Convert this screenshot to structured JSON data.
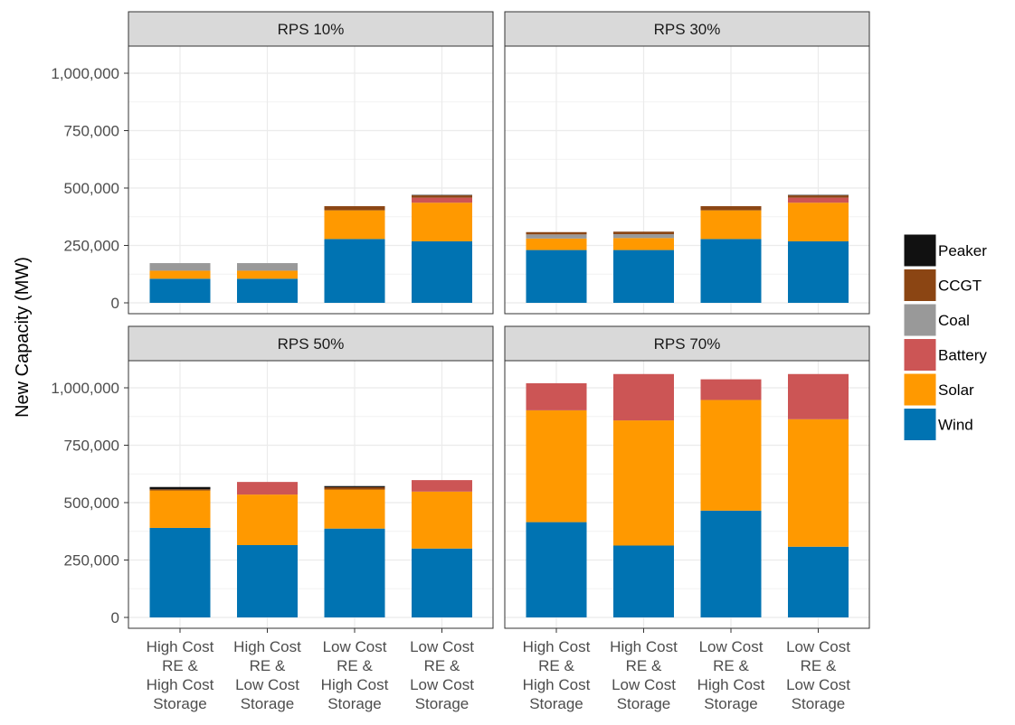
{
  "chart_data": {
    "type": "bar",
    "stacked": true,
    "ylabel": "New Capacity (MW)",
    "xlabel": "",
    "ylim": [
      0,
      1100000
    ],
    "yticks": [
      0,
      250000,
      500000,
      750000,
      1000000
    ],
    "ytick_labels": [
      "0",
      "250,000",
      "500,000",
      "750,000",
      "1,000,000"
    ],
    "grid": true,
    "legend_position": "right",
    "categories": [
      [
        "High Cost",
        "RE &",
        "High Cost",
        "Storage"
      ],
      [
        "High Cost",
        "RE &",
        "Low Cost",
        "Storage"
      ],
      [
        "Low Cost",
        "RE &",
        "High Cost",
        "Storage"
      ],
      [
        "Low Cost",
        "RE &",
        "Low Cost",
        "Storage"
      ]
    ],
    "legend": [
      {
        "name": "Peaker",
        "color": "#111111"
      },
      {
        "name": "CCGT",
        "color": "#8B4513"
      },
      {
        "name": "Coal",
        "color": "#999999"
      },
      {
        "name": "Battery",
        "color": "#CC5555"
      },
      {
        "name": "Solar",
        "color": "#FF9900"
      },
      {
        "name": "Wind",
        "color": "#0073B2"
      }
    ],
    "stack_order": [
      "Wind",
      "Solar",
      "Battery",
      "Coal",
      "CCGT",
      "Peaker"
    ],
    "panels": [
      {
        "title": "RPS 10%",
        "series": [
          {
            "name": "Wind",
            "values": [
              105000,
              105000,
              278000,
              268000
            ]
          },
          {
            "name": "Solar",
            "values": [
              35000,
              35000,
              125000,
              168000
            ]
          },
          {
            "name": "Battery",
            "values": [
              0,
              0,
              0,
              22000
            ]
          },
          {
            "name": "Coal",
            "values": [
              33000,
              33000,
              0,
              0
            ]
          },
          {
            "name": "CCGT",
            "values": [
              0,
              0,
              18000,
              10000
            ]
          },
          {
            "name": "Peaker",
            "values": [
              0,
              0,
              0,
              2000
            ]
          }
        ]
      },
      {
        "title": "RPS 30%",
        "series": [
          {
            "name": "Wind",
            "values": [
              230000,
              230000,
              278000,
              268000
            ]
          },
          {
            "name": "Solar",
            "values": [
              50000,
              52000,
              125000,
              168000
            ]
          },
          {
            "name": "Battery",
            "values": [
              0,
              0,
              0,
              22000
            ]
          },
          {
            "name": "Coal",
            "values": [
              18000,
              17000,
              0,
              0
            ]
          },
          {
            "name": "CCGT",
            "values": [
              10000,
              11000,
              18000,
              10000
            ]
          },
          {
            "name": "Peaker",
            "values": [
              0,
              0,
              0,
              2000
            ]
          }
        ]
      },
      {
        "title": "RPS 50%",
        "series": [
          {
            "name": "Wind",
            "values": [
              390000,
              315000,
              387000,
              300000
            ]
          },
          {
            "name": "Solar",
            "values": [
              163000,
              220000,
              170000,
              248000
            ]
          },
          {
            "name": "Battery",
            "values": [
              0,
              55000,
              0,
              50000
            ]
          },
          {
            "name": "Coal",
            "values": [
              0,
              0,
              0,
              0
            ]
          },
          {
            "name": "CCGT",
            "values": [
              5000,
              0,
              10000,
              0
            ]
          },
          {
            "name": "Peaker",
            "values": [
              10000,
              0,
              5000,
              0
            ]
          }
        ]
      },
      {
        "title": "RPS 70%",
        "series": [
          {
            "name": "Wind",
            "values": [
              415000,
              313000,
              465000,
              308000
            ]
          },
          {
            "name": "Solar",
            "values": [
              487000,
              545000,
              482000,
              555000
            ]
          },
          {
            "name": "Battery",
            "values": [
              118000,
              202000,
              90000,
              197000
            ]
          },
          {
            "name": "Coal",
            "values": [
              0,
              0,
              0,
              0
            ]
          },
          {
            "name": "CCGT",
            "values": [
              0,
              0,
              0,
              0
            ]
          },
          {
            "name": "Peaker",
            "values": [
              0,
              0,
              0,
              0
            ]
          }
        ]
      }
    ]
  }
}
